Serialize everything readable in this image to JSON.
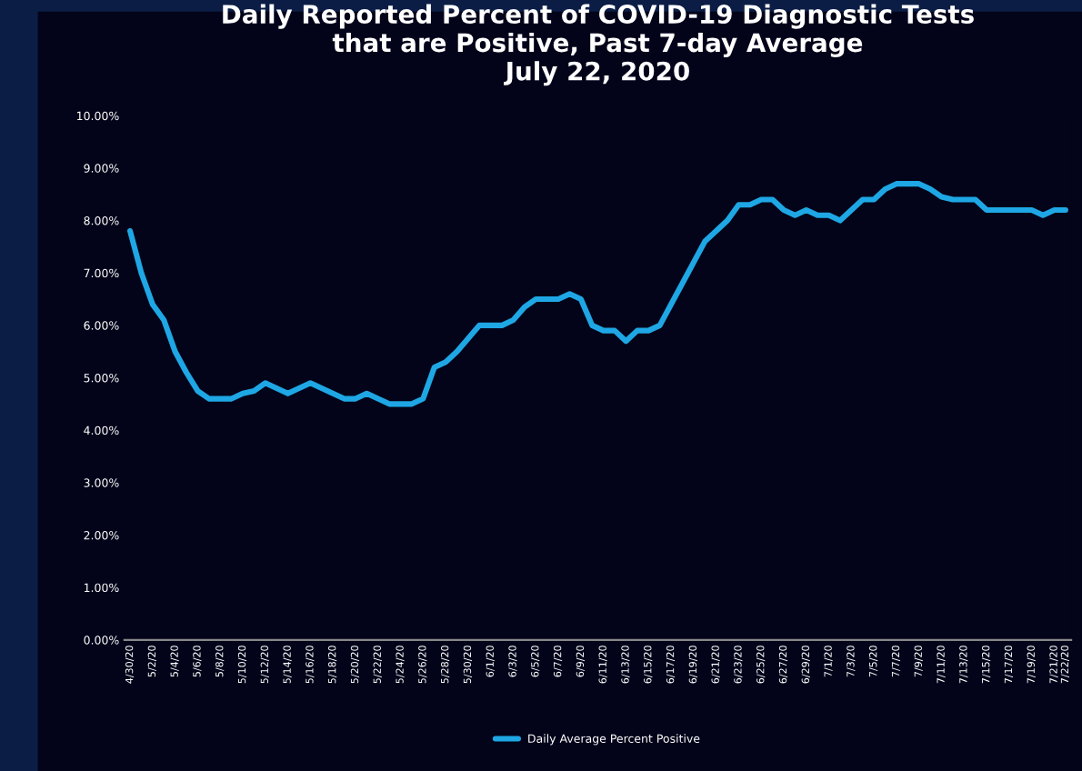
{
  "chart_data": {
    "type": "line",
    "title": "Daily Reported Percent of COVID-19 Diagnostic Tests\nthat are Positive, Past 7-day Average\nJuly 22, 2020",
    "categories": [
      "4/30/20",
      null,
      "5/2/20",
      null,
      "5/4/20",
      null,
      "5/6/20",
      null,
      "5/8/20",
      null,
      "5/10/20",
      null,
      "5/12/20",
      null,
      "5/14/20",
      null,
      "5/16/20",
      null,
      "5/18/20",
      null,
      "5/20/20",
      null,
      "5/22/20",
      null,
      "5/24/20",
      null,
      "5/26/20",
      null,
      "5/28/20",
      null,
      "5/30/20",
      null,
      "6/1/20",
      null,
      "6/3/20",
      null,
      "6/5/20",
      null,
      "6/7/20",
      null,
      "6/9/20",
      null,
      "6/11/20",
      null,
      "6/13/20",
      null,
      "6/15/20",
      null,
      "6/17/20",
      null,
      "6/19/20",
      null,
      "6/21/20",
      null,
      "6/23/20",
      null,
      "6/25/20",
      null,
      "6/27/20",
      null,
      "6/29/20",
      null,
      "7/1/20",
      null,
      "7/3/20",
      null,
      "7/5/20",
      null,
      "7/7/20",
      null,
      "7/9/20",
      null,
      "7/11/20",
      null,
      "7/13/20",
      null,
      "7/15/20",
      null,
      "7/17/20",
      null,
      "7/19/20",
      null,
      "7/21/20",
      "7/22/20"
    ],
    "series": [
      {
        "name": "Daily Average Percent Positive",
        "color": "#1ea7e4",
        "values": [
          7.8,
          7.0,
          6.4,
          6.1,
          5.5,
          5.1,
          4.75,
          4.6,
          4.6,
          4.6,
          4.7,
          4.75,
          4.9,
          4.8,
          4.7,
          4.8,
          4.9,
          4.8,
          4.7,
          4.6,
          4.6,
          4.7,
          4.6,
          4.5,
          4.5,
          4.5,
          4.6,
          5.2,
          5.3,
          5.5,
          5.75,
          6.0,
          6.0,
          6.0,
          6.1,
          6.35,
          6.5,
          6.5,
          6.5,
          6.6,
          6.5,
          6.0,
          5.9,
          5.9,
          5.7,
          5.9,
          5.9,
          6.0,
          6.4,
          6.8,
          7.2,
          7.6,
          7.8,
          8.0,
          8.3,
          8.3,
          8.4,
          8.4,
          8.2,
          8.1,
          8.2,
          8.1,
          8.1,
          8.0,
          8.2,
          8.4,
          8.4,
          8.6,
          8.7,
          8.7,
          8.7,
          8.6,
          8.45,
          8.4,
          8.4,
          8.4,
          8.2,
          8.2,
          8.2,
          8.2,
          8.2,
          8.1,
          8.2,
          8.2
        ]
      }
    ],
    "ylim": [
      0,
      10
    ],
    "yticks": [
      {
        "value": 0,
        "label": "0.00%"
      },
      {
        "value": 1,
        "label": "1.00%"
      },
      {
        "value": 2,
        "label": "2.00%"
      },
      {
        "value": 3,
        "label": "3.00%"
      },
      {
        "value": 4,
        "label": "4.00%"
      },
      {
        "value": 5,
        "label": "5.00%"
      },
      {
        "value": 6,
        "label": "6.00%"
      },
      {
        "value": 7,
        "label": "7.00%"
      },
      {
        "value": 8,
        "label": "8.00%"
      },
      {
        "value": 9,
        "label": "9.00%"
      },
      {
        "value": 10,
        "label": "10.00%"
      }
    ],
    "grid": false,
    "legend": "bottom",
    "marker": "none",
    "line_style": "solid"
  }
}
